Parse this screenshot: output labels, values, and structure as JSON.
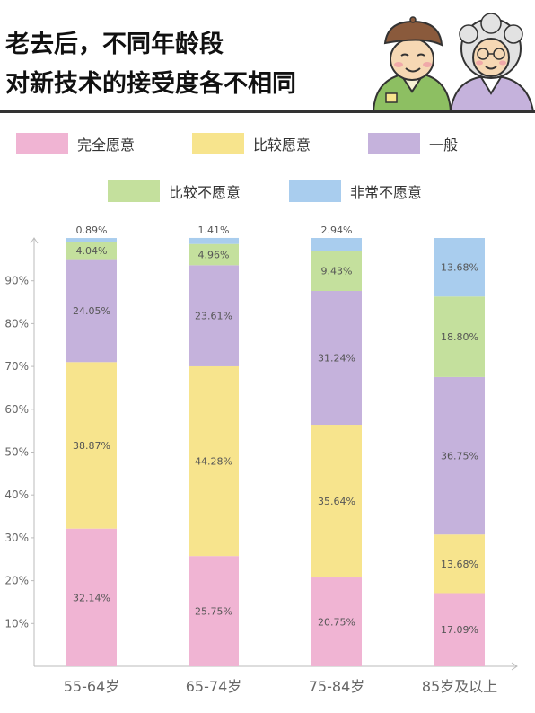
{
  "title": {
    "line1": "老去后，不同年龄段",
    "line2": "对新技术的接受度各不相同"
  },
  "illustration": {
    "icon": "elderly-couple-illustration"
  },
  "colors": {
    "fully_willing": "#f0b4d3",
    "willing": "#f7e48d",
    "neutral": "#c5b2dc",
    "unwilling": "#c4e09d",
    "very_unwilling": "#a9cdee"
  },
  "chart_data": {
    "type": "bar",
    "stacked": true,
    "categories": [
      "55-64岁",
      "65-74岁",
      "75-84岁",
      "85岁及以上"
    ],
    "series": [
      {
        "name": "完全愿意",
        "values": [
          32.14,
          25.75,
          20.75,
          17.09
        ],
        "labels": [
          "32.14%",
          "25.75%",
          "20.75%",
          "17.09%"
        ]
      },
      {
        "name": "比较愿意",
        "values": [
          38.87,
          44.28,
          35.64,
          13.68
        ],
        "labels": [
          "38.87%",
          "44.28%",
          "35.64%",
          "13.68%"
        ]
      },
      {
        "name": "一般",
        "values": [
          24.05,
          23.61,
          31.24,
          36.75
        ],
        "labels": [
          "24.05%",
          "23.61%",
          "31.24%",
          "36.75%"
        ]
      },
      {
        "name": "比较不愿意",
        "values": [
          4.04,
          4.96,
          9.43,
          18.8
        ],
        "labels": [
          "4.04%",
          "4.96%",
          "9.43%",
          "18.80%"
        ]
      },
      {
        "name": "非常不愿意",
        "values": [
          0.89,
          1.41,
          2.94,
          13.68
        ],
        "labels": [
          "0.89%",
          "1.41%",
          "2.94%",
          "13.68%"
        ]
      }
    ],
    "y_ticks": [
      10,
      20,
      30,
      40,
      50,
      60,
      70,
      80,
      90
    ],
    "y_tick_labels": [
      "10%",
      "20%",
      "30%",
      "40%",
      "50%",
      "60%",
      "70%",
      "80%",
      "90%"
    ],
    "ylim": [
      0,
      100
    ],
    "grid": false,
    "legend_position": "top"
  }
}
